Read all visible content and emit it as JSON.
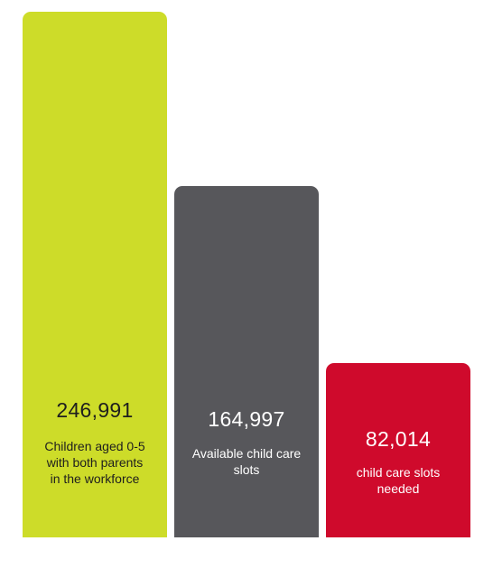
{
  "chart_data": {
    "type": "bar",
    "title": "",
    "xlabel": "",
    "ylabel": "",
    "grid": false,
    "ylim": [
      0,
      246991
    ],
    "categories": [
      "Children aged 0-5\nwith both parents\nin the workforce",
      "Available child care\nslots",
      "child care slots\nneeded"
    ],
    "values": [
      246991,
      164997,
      82014
    ],
    "value_labels": [
      "246,991",
      "164,997",
      "82,014"
    ],
    "colors": [
      "#cddc29",
      "#57575b",
      "#cf0a2c"
    ],
    "text_colors": [
      "#1e1e1e",
      "#ffffff",
      "#ffffff"
    ]
  }
}
